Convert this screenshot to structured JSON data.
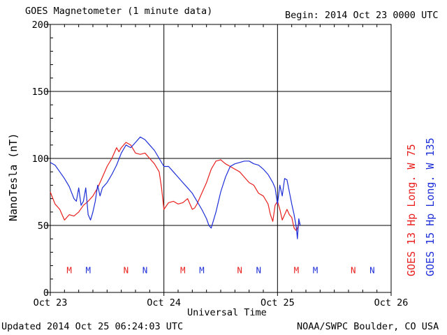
{
  "header": {
    "title": "GOES Magnetometer (1 minute data)",
    "begin": "Begin:  2014 Oct 23 0000 UTC"
  },
  "footer": {
    "updated": "Updated 2014 Oct 25 06:24:03 UTC",
    "source": "NOAA/SWPC Boulder, CO USA"
  },
  "chart_data": {
    "type": "line",
    "ylabel": "NanoTesla (nT)",
    "xlabel": "Universal Time",
    "ylim": [
      0,
      200
    ],
    "xlim_hours": [
      0,
      72
    ],
    "yticks": [
      0,
      50,
      100,
      150,
      200
    ],
    "xticks": [
      {
        "hour": 0,
        "label": "Oct 23"
      },
      {
        "hour": 24,
        "label": "Oct 24"
      },
      {
        "hour": 48,
        "label": "Oct 25"
      },
      {
        "hour": 72,
        "label": "Oct 26"
      }
    ],
    "grid": true,
    "series": [
      {
        "name": "GOES 13 Hp  Long. W 75",
        "color": "#e8201e",
        "x": [
          0,
          1,
          2,
          2.5,
          3,
          3.5,
          4,
          5,
          6,
          7,
          8,
          9,
          10,
          11,
          12,
          13,
          13.5,
          14,
          14.5,
          15,
          16,
          17,
          18,
          19,
          20,
          21,
          22,
          23,
          23.5,
          24,
          25,
          26,
          27,
          28,
          29,
          30,
          30.5,
          31,
          32,
          33,
          34,
          35,
          36,
          37,
          38,
          39,
          40,
          41,
          42,
          43,
          44,
          45,
          46,
          46.5,
          47,
          47.5,
          48,
          48.5,
          49,
          49.5,
          50,
          50.5,
          51,
          51.5,
          52,
          52.6
        ],
        "y": [
          75,
          66,
          62,
          58,
          54,
          56,
          58,
          57,
          60,
          65,
          68,
          72,
          78,
          86,
          94,
          100,
          104,
          108,
          105,
          108,
          112,
          110,
          104,
          103,
          104,
          100,
          96,
          90,
          78,
          62,
          67,
          68,
          66,
          67,
          70,
          62,
          63,
          66,
          74,
          82,
          92,
          98,
          99,
          96,
          94,
          92,
          90,
          86,
          82,
          80,
          74,
          72,
          66,
          58,
          53,
          65,
          68,
          62,
          54,
          58,
          62,
          58,
          56,
          48,
          46,
          52
        ]
      },
      {
        "name": "GOES 15 Hp  Long. W 135",
        "color": "#1e2fd8",
        "x": [
          0,
          1,
          2,
          3,
          4,
          5,
          5.5,
          6,
          6.5,
          7,
          7.5,
          8,
          8.5,
          9,
          9.5,
          10,
          10.5,
          11,
          12,
          13,
          14,
          15,
          16,
          17,
          18,
          19,
          20,
          21,
          22,
          23,
          24,
          25,
          26,
          27,
          28,
          29,
          30,
          31,
          32,
          33,
          33.5,
          34,
          35,
          36,
          37,
          38,
          39,
          40,
          41,
          42,
          43,
          44,
          45,
          46,
          47,
          47.5,
          48,
          48.5,
          49,
          49.5,
          50,
          50.5,
          51,
          51.5,
          52,
          52.2,
          52.5,
          52.8
        ],
        "y": [
          97,
          95,
          90,
          85,
          79,
          70,
          68,
          78,
          65,
          68,
          78,
          58,
          54,
          60,
          68,
          80,
          72,
          78,
          82,
          88,
          95,
          104,
          110,
          108,
          112,
          116,
          114,
          110,
          106,
          100,
          94,
          94,
          90,
          86,
          82,
          78,
          74,
          68,
          62,
          55,
          50,
          48,
          60,
          75,
          86,
          94,
          96,
          97,
          98,
          98,
          96,
          95,
          92,
          88,
          82,
          78,
          66,
          80,
          72,
          85,
          84,
          75,
          66,
          58,
          48,
          40,
          55,
          50
        ]
      }
    ],
    "markers": [
      {
        "hour": 4,
        "label": "M",
        "color": "#e8201e"
      },
      {
        "hour": 8,
        "label": "M",
        "color": "#1e2fd8"
      },
      {
        "hour": 16,
        "label": "N",
        "color": "#e8201e"
      },
      {
        "hour": 20,
        "label": "N",
        "color": "#1e2fd8"
      },
      {
        "hour": 28,
        "label": "M",
        "color": "#e8201e"
      },
      {
        "hour": 32,
        "label": "M",
        "color": "#1e2fd8"
      },
      {
        "hour": 40,
        "label": "N",
        "color": "#e8201e"
      },
      {
        "hour": 44,
        "label": "N",
        "color": "#1e2fd8"
      },
      {
        "hour": 52,
        "label": "M",
        "color": "#e8201e"
      },
      {
        "hour": 56,
        "label": "M",
        "color": "#1e2fd8"
      },
      {
        "hour": 64,
        "label": "N",
        "color": "#e8201e"
      },
      {
        "hour": 68,
        "label": "N",
        "color": "#1e2fd8"
      }
    ],
    "marker_level_nT": 17
  }
}
